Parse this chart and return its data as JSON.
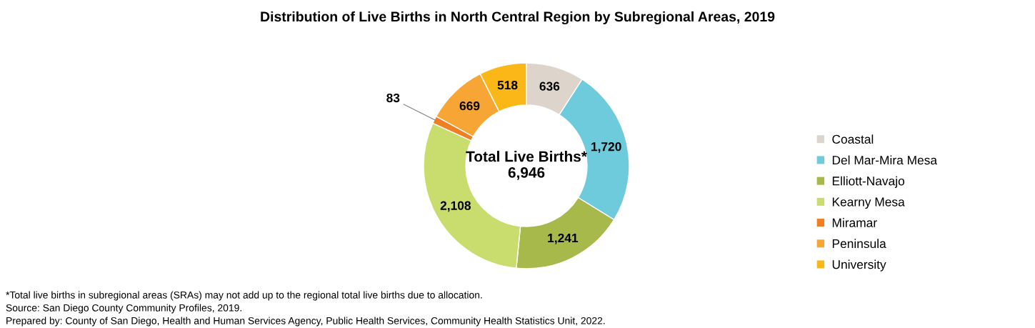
{
  "chart_data": {
    "type": "donut",
    "title": "Distribution of Live Births in North Central Region by Subregional Areas, 2019",
    "categories": [
      "Coastal",
      "Del Mar-Mira Mesa",
      "Elliott-Navajo",
      "Kearny Mesa",
      "Miramar",
      "Peninsula",
      "University"
    ],
    "values": [
      636,
      1720,
      1241,
      2108,
      83,
      669,
      518
    ],
    "value_labels": [
      "636",
      "1,720",
      "1,241",
      "2,108",
      "83",
      "669",
      "518"
    ],
    "colors": [
      "#ddd4cb",
      "#6ecbdc",
      "#a6b94a",
      "#c9dd6f",
      "#f07e23",
      "#f7a535",
      "#fbb717"
    ],
    "legend": "right",
    "annotations": [
      "Total Live Births*\n6,946",
      "*Total live births in subregional areas (SRAs) may not add up to the regional total live births due to allocation.",
      "Source: San Diego County Community Profiles, 2019.",
      "Prepared by: County of San Diego, Health and Human Services Agency, Public Health Services, Community Health Statistics Unit, 2022."
    ]
  }
}
